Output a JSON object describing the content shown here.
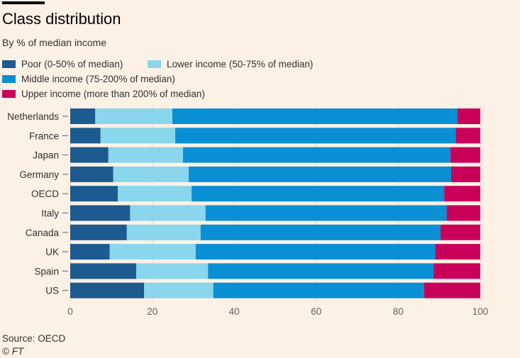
{
  "header": {
    "title": "Class distribution",
    "subtitle": "By % of median income"
  },
  "footer": {
    "source": "Source: OECD",
    "credit": "© FT"
  },
  "chart_data": {
    "type": "bar",
    "orientation": "horizontal",
    "stacked": true,
    "categories": [
      "Netherlands",
      "France",
      "Japan",
      "Germany",
      "OECD",
      "Italy",
      "Canada",
      "UK",
      "Spain",
      "US"
    ],
    "series": [
      {
        "name": "Poor (0-50% of median)",
        "color": "#1d5a8f",
        "values": [
          6.1,
          7.4,
          9.3,
          10.5,
          11.6,
          14.6,
          13.8,
          9.6,
          16.1,
          18.0
        ]
      },
      {
        "name": "Lower income (50-75% of median)",
        "color": "#8ad6ec",
        "values": [
          18.8,
          18.2,
          18.2,
          18.4,
          18.0,
          18.4,
          18.0,
          21.0,
          17.5,
          16.9
        ]
      },
      {
        "name": "Middle income (75-200% of median)",
        "color": "#0a8fd4",
        "values": [
          69.5,
          68.4,
          65.2,
          64.0,
          61.6,
          58.8,
          58.5,
          58.4,
          55.0,
          51.4
        ]
      },
      {
        "name": "Upper income (more than 200% of median)",
        "color": "#c9005a",
        "values": [
          5.6,
          6.0,
          7.3,
          7.1,
          8.8,
          8.2,
          9.7,
          11.0,
          11.4,
          13.7
        ]
      }
    ],
    "xlim": [
      0,
      100
    ],
    "xticks": [
      0,
      20,
      40,
      60,
      80,
      100
    ],
    "legend_position": "top-left"
  }
}
